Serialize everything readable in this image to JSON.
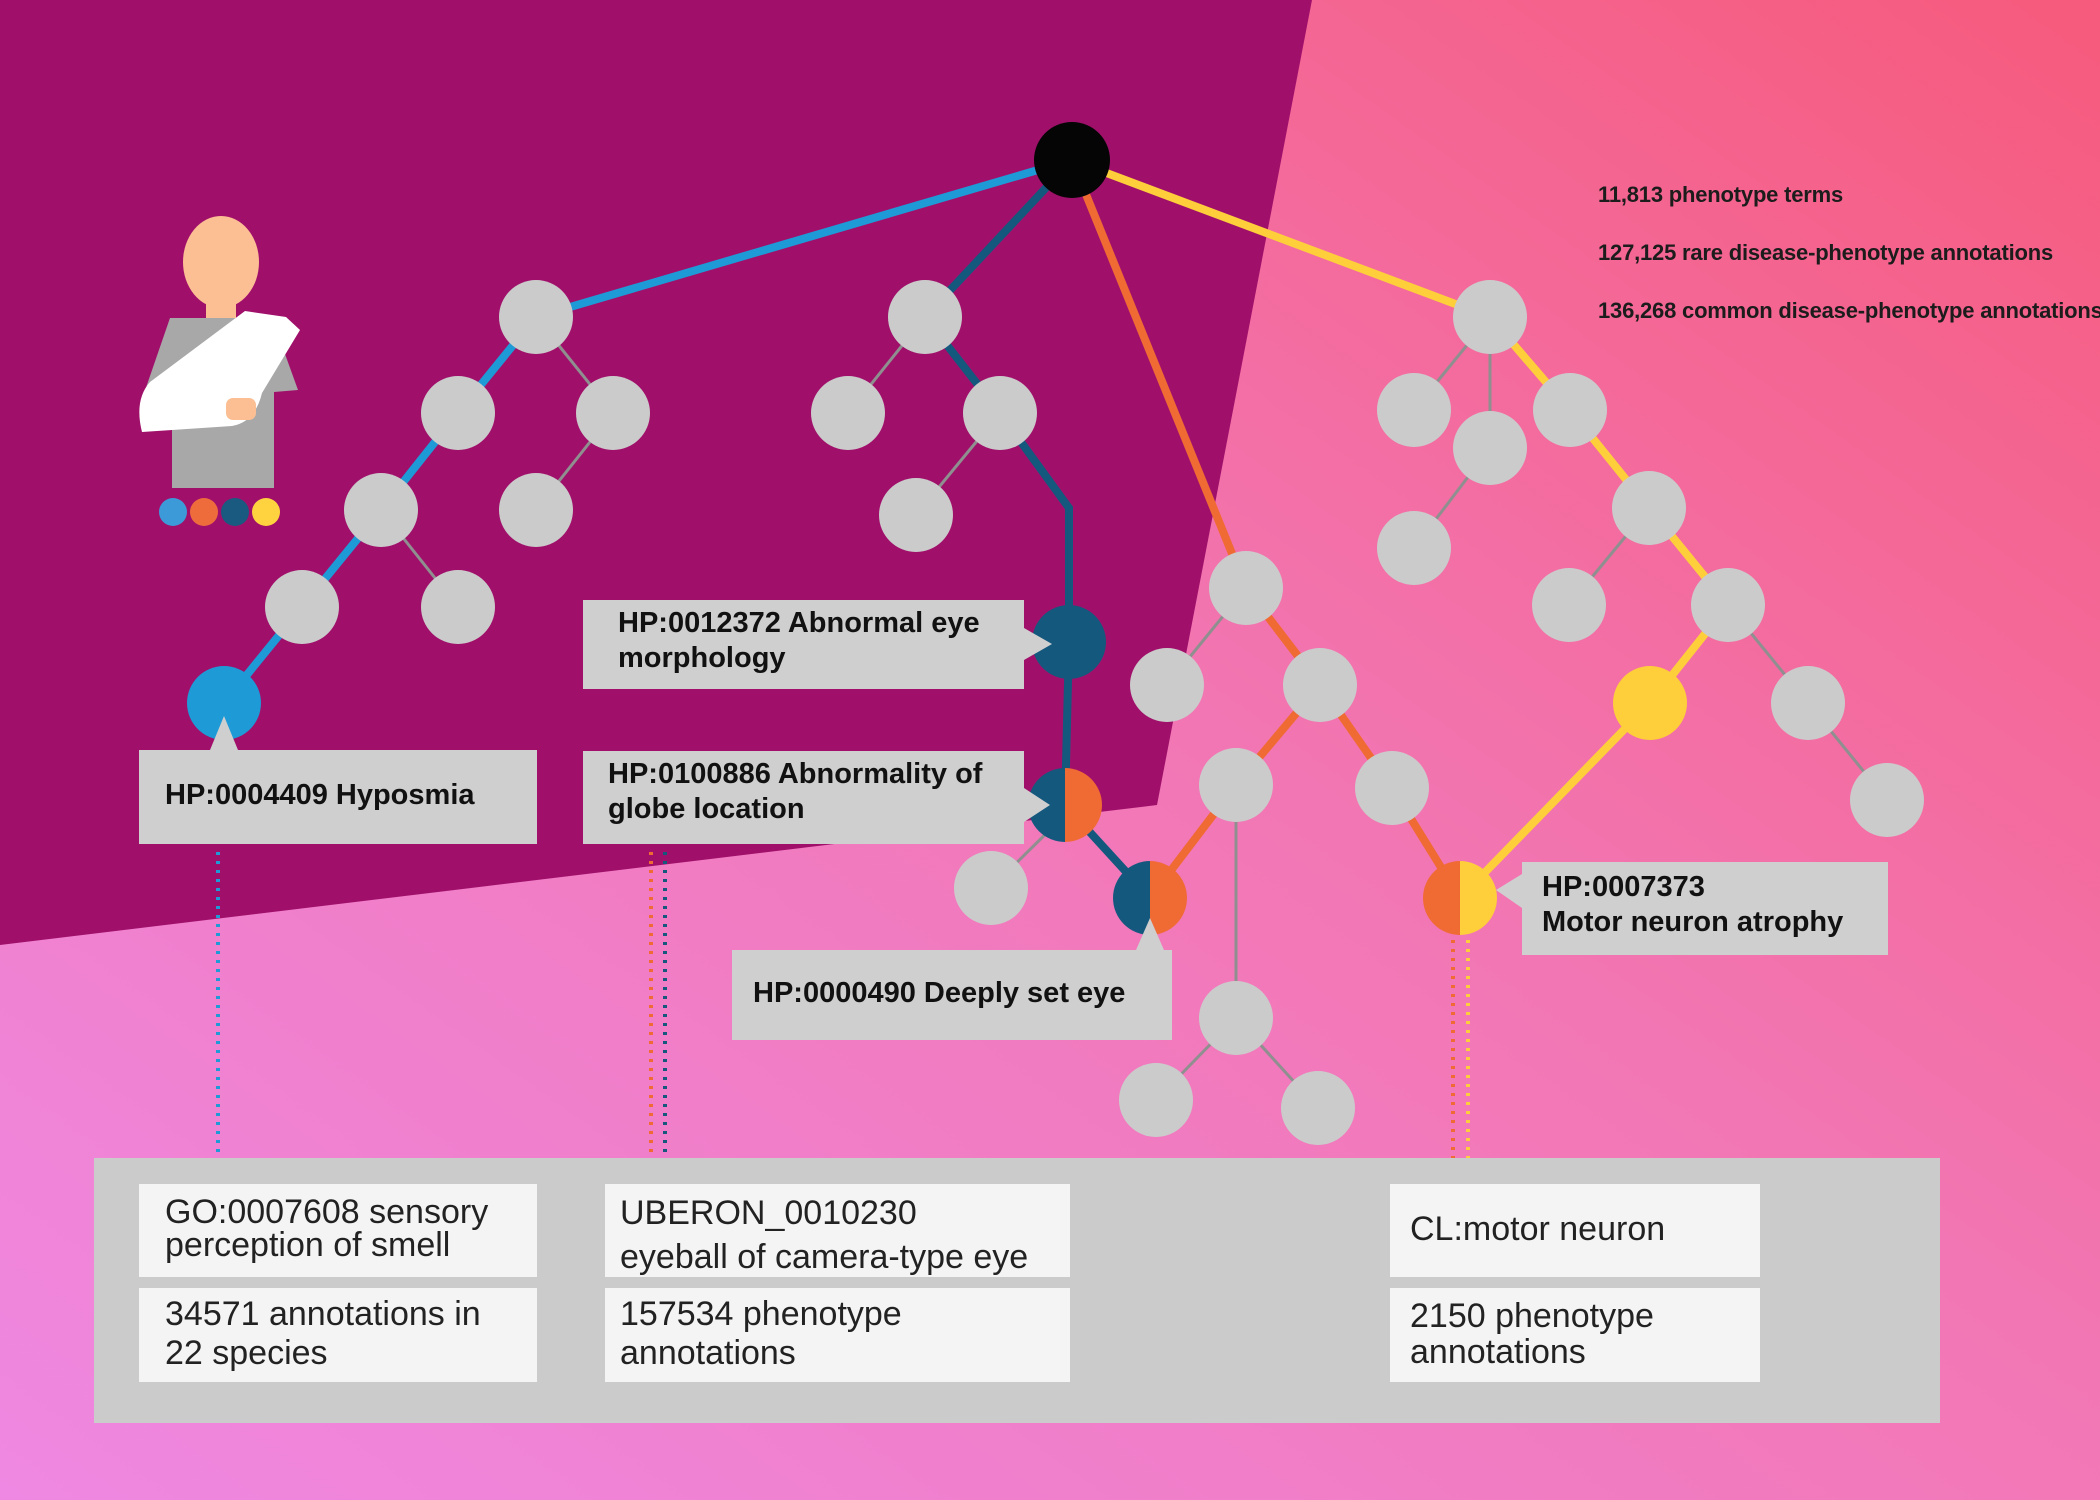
{
  "stats": [
    "11,813 phenotype terms",
    "127,125 rare disease-phenotype annotations",
    "136,268 common disease-phenotype annotations"
  ],
  "callouts": {
    "hyposmia": [
      "HP:0004409 Hyposmia"
    ],
    "eye_morph": [
      "HP:0012372 Abnormal eye",
      "morphology"
    ],
    "globe": [
      "HP:0100886 Abnormality of",
      "globe location"
    ],
    "deep_eye": [
      "HP:0000490 Deeply set eye"
    ],
    "motor": [
      "HP:0007373",
      "Motor neuron atrophy"
    ]
  },
  "ontology_boxes": {
    "go_title": [
      "GO:0007608 sensory",
      "perception of smell"
    ],
    "go_count": [
      "34571 annotations in",
      "22 species"
    ],
    "uberon_title": [
      "UBERON_0010230",
      "eyeball of camera-type eye"
    ],
    "uberon_count": [
      "157534 phenotype",
      "annotations"
    ],
    "cl_title": [
      "CL:motor neuron"
    ],
    "cl_count": [
      "2150 phenotype",
      "annotations"
    ]
  },
  "patient": {
    "icon": "patient-with-arm-sling-icon",
    "dot_colors": [
      "#3d9ad8",
      "#ee6c3c",
      "#1a5a80",
      "#ffd23f"
    ]
  },
  "colors": {
    "blue": "#1e9ad6",
    "navy": "#15587e",
    "orange": "#f06a34",
    "yellow": "#ffce3b",
    "node_gray": "#cbcbcb",
    "root": "#050505",
    "plum": "#a0106b"
  }
}
